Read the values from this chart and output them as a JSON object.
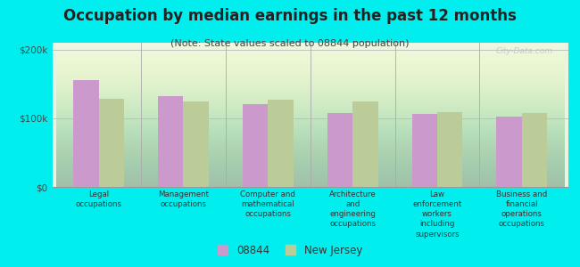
{
  "title": "Occupation by median earnings in the past 12 months",
  "subtitle": "(Note: State values scaled to 08844 population)",
  "categories": [
    "Legal\noccupations",
    "Management\noccupations",
    "Computer and\nmathematical\noccupations",
    "Architecture\nand\nengineering\noccupations",
    "Law\nenforcement\nworkers\nincluding\nsupervisors",
    "Business and\nfinancial\noperations\noccupations"
  ],
  "values_08844": [
    155000,
    132000,
    120000,
    108000,
    106000,
    102000
  ],
  "values_nj": [
    128000,
    124000,
    127000,
    125000,
    109000,
    108000
  ],
  "color_08844": "#cc99cc",
  "color_nj": "#bbcc99",
  "background_color": "#00eeee",
  "ylim": [
    0,
    210000
  ],
  "yticks": [
    0,
    100000,
    200000
  ],
  "ytick_labels": [
    "$0",
    "$100k",
    "$200k"
  ],
  "watermark": "City-Data.com",
  "legend_08844": "08844",
  "legend_nj": "New Jersey",
  "title_fontsize": 12,
  "subtitle_fontsize": 8
}
